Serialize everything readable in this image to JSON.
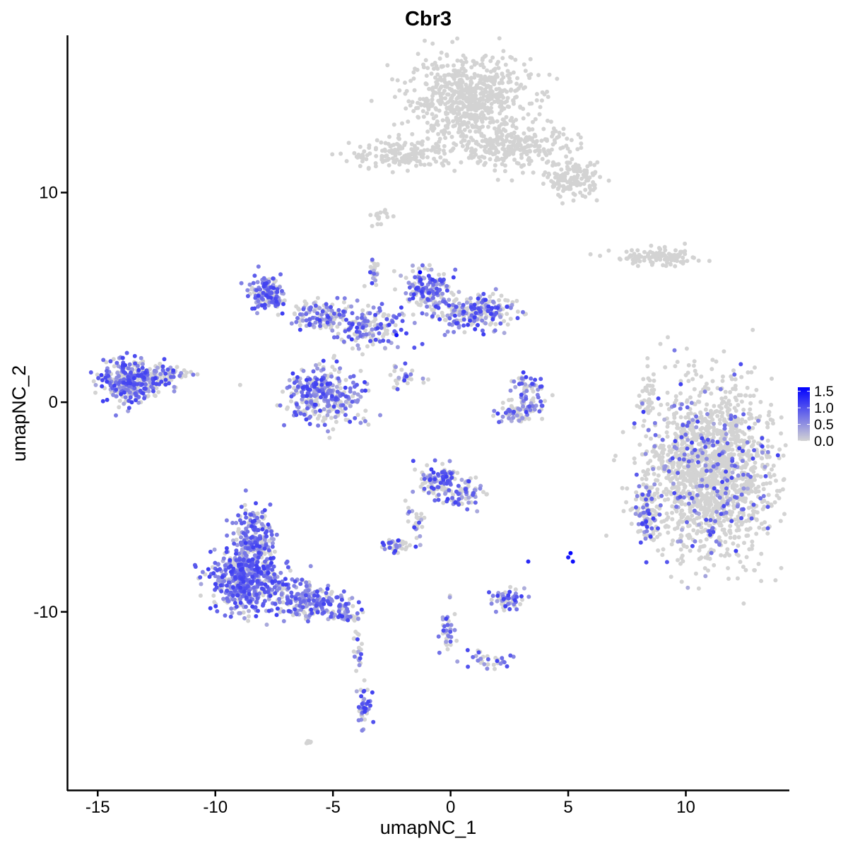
{
  "chart_data": {
    "type": "scatter",
    "title": "Cbr3",
    "xlabel": "umapNC_1",
    "ylabel": "umapNC_2",
    "xlim": [
      -16.3,
      14.4
    ],
    "ylim": [
      -18.5,
      17.5
    ],
    "x_ticks": [
      -15,
      -10,
      -5,
      0,
      5,
      10
    ],
    "x_tick_labels": [
      "-15",
      "-10",
      "-5",
      "0",
      "5",
      "10"
    ],
    "y_ticks": [
      -10,
      0,
      10
    ],
    "y_tick_labels": [
      "-10",
      "0",
      "10"
    ],
    "grid": false,
    "legend": {
      "placement": "right",
      "labels": [
        "1.5",
        "1.0",
        "0.5",
        "0.0"
      ],
      "values": [
        1.5,
        1.0,
        0.5,
        0.0
      ],
      "range": [
        0.0,
        1.62
      ]
    },
    "colors": {
      "low": "#d3d3d3",
      "high": "#0000ff"
    },
    "seed_points": [
      {
        "x": -1.3,
        "y": 6.2,
        "v": 1.6
      },
      {
        "x": -2.3,
        "y": 3.2,
        "v": 1.5
      },
      {
        "x": 5.1,
        "y": -7.2,
        "v": 1.6
      },
      {
        "x": 5.2,
        "y": -7.6,
        "v": 1.5
      },
      {
        "x": 5.0,
        "y": -7.4,
        "v": 1.4
      },
      {
        "x": 3.3,
        "y": -7.6,
        "v": 1.3
      },
      {
        "x": -4.2,
        "y": 3.0,
        "v": 1.2
      },
      {
        "x": -7.4,
        "y": 4.8,
        "v": 1.1
      },
      {
        "x": 2.4,
        "y": -12.6,
        "v": 1.0
      },
      {
        "x": -3.7,
        "y": -13.8,
        "v": 0.9
      }
    ],
    "clusters": [
      {
        "x": 0.8,
        "y": 14.5,
        "sx": 1.6,
        "sy": 1.2,
        "n": 650,
        "expr": 0.0
      },
      {
        "x": 2.5,
        "y": 12.2,
        "sx": 1.8,
        "sy": 0.6,
        "n": 280,
        "expr": 0.0
      },
      {
        "x": -2.0,
        "y": 11.8,
        "sx": 1.4,
        "sy": 0.45,
        "n": 160,
        "expr": 0.0
      },
      {
        "x": 5.2,
        "y": 10.6,
        "sx": 0.7,
        "sy": 0.5,
        "n": 140,
        "expr": 0.0
      },
      {
        "x": -3.0,
        "y": 8.8,
        "sx": 0.2,
        "sy": 0.25,
        "n": 18,
        "expr": 0.0
      },
      {
        "x": 8.8,
        "y": 6.9,
        "sx": 1.2,
        "sy": 0.25,
        "n": 110,
        "expr": 0.0
      },
      {
        "x": 11.0,
        "y": -3.3,
        "sx": 1.65,
        "sy": 2.55,
        "n": 1700,
        "expr": 0.02
      },
      {
        "x": 8.3,
        "y": -5.2,
        "sx": 0.35,
        "sy": 0.9,
        "n": 90,
        "expr": 0.3
      },
      {
        "x": 8.4,
        "y": 0.2,
        "sx": 0.2,
        "sy": 0.9,
        "n": 40,
        "expr": 0.0
      },
      {
        "x": -13.6,
        "y": 1.0,
        "sx": 0.7,
        "sy": 0.6,
        "n": 320,
        "expr": 0.55
      },
      {
        "x": -12.2,
        "y": 1.4,
        "sx": 0.7,
        "sy": 0.35,
        "n": 70,
        "expr": 0.3
      },
      {
        "x": -7.8,
        "y": 5.2,
        "sx": 0.45,
        "sy": 0.5,
        "n": 140,
        "expr": 0.55
      },
      {
        "x": -5.4,
        "y": 4.1,
        "sx": 0.9,
        "sy": 0.4,
        "n": 130,
        "expr": 0.45
      },
      {
        "x": -3.5,
        "y": 3.6,
        "sx": 0.9,
        "sy": 0.6,
        "n": 150,
        "expr": 0.4
      },
      {
        "x": -1.0,
        "y": 5.3,
        "sx": 0.6,
        "sy": 0.6,
        "n": 160,
        "expr": 0.5
      },
      {
        "x": 0.9,
        "y": 4.3,
        "sx": 1.1,
        "sy": 0.55,
        "n": 230,
        "expr": 0.45
      },
      {
        "x": -5.3,
        "y": 0.3,
        "sx": 0.95,
        "sy": 0.85,
        "n": 330,
        "expr": 0.45
      },
      {
        "x": -3.3,
        "y": 6.0,
        "sx": 0.15,
        "sy": 0.5,
        "n": 25,
        "expr": 0.2
      },
      {
        "x": -2.0,
        "y": 1.2,
        "sx": 0.5,
        "sy": 0.35,
        "n": 30,
        "expr": 0.2
      },
      {
        "x": 3.2,
        "y": 0.3,
        "sx": 0.45,
        "sy": 0.7,
        "n": 80,
        "expr": 0.45
      },
      {
        "x": 2.7,
        "y": -0.5,
        "sx": 0.6,
        "sy": 0.3,
        "n": 50,
        "expr": 0.35
      },
      {
        "x": -8.7,
        "y": -8.4,
        "sx": 0.9,
        "sy": 0.9,
        "n": 520,
        "expr": 0.7
      },
      {
        "x": -8.3,
        "y": -6.5,
        "sx": 0.5,
        "sy": 0.9,
        "n": 200,
        "expr": 0.65
      },
      {
        "x": -6.0,
        "y": -9.5,
        "sx": 1.0,
        "sy": 0.5,
        "n": 200,
        "expr": 0.6
      },
      {
        "x": -4.4,
        "y": -10.2,
        "sx": 0.4,
        "sy": 0.2,
        "n": 40,
        "expr": 0.5
      },
      {
        "x": -3.7,
        "y": -14.5,
        "sx": 0.2,
        "sy": 0.6,
        "n": 45,
        "expr": 0.6
      },
      {
        "x": -4.0,
        "y": -11.8,
        "sx": 0.15,
        "sy": 0.8,
        "n": 22,
        "expr": 0.4
      },
      {
        "x": -0.5,
        "y": -3.8,
        "sx": 0.5,
        "sy": 0.5,
        "n": 110,
        "expr": 0.45
      },
      {
        "x": 0.5,
        "y": -4.3,
        "sx": 0.5,
        "sy": 0.5,
        "n": 70,
        "expr": 0.4
      },
      {
        "x": -1.5,
        "y": -5.8,
        "sx": 0.25,
        "sy": 0.6,
        "n": 30,
        "expr": 0.35
      },
      {
        "x": -2.4,
        "y": -6.8,
        "sx": 0.35,
        "sy": 0.2,
        "n": 40,
        "expr": 0.35
      },
      {
        "x": 2.4,
        "y": -9.4,
        "sx": 0.45,
        "sy": 0.3,
        "n": 55,
        "expr": 0.45
      },
      {
        "x": -0.1,
        "y": -10.8,
        "sx": 0.2,
        "sy": 0.7,
        "n": 35,
        "expr": 0.5
      },
      {
        "x": 1.6,
        "y": -12.2,
        "sx": 0.7,
        "sy": 0.3,
        "n": 30,
        "expr": 0.4
      },
      {
        "x": -6.0,
        "y": -16.2,
        "sx": 0.15,
        "sy": 0.1,
        "n": 8,
        "expr": 0.0
      }
    ]
  }
}
